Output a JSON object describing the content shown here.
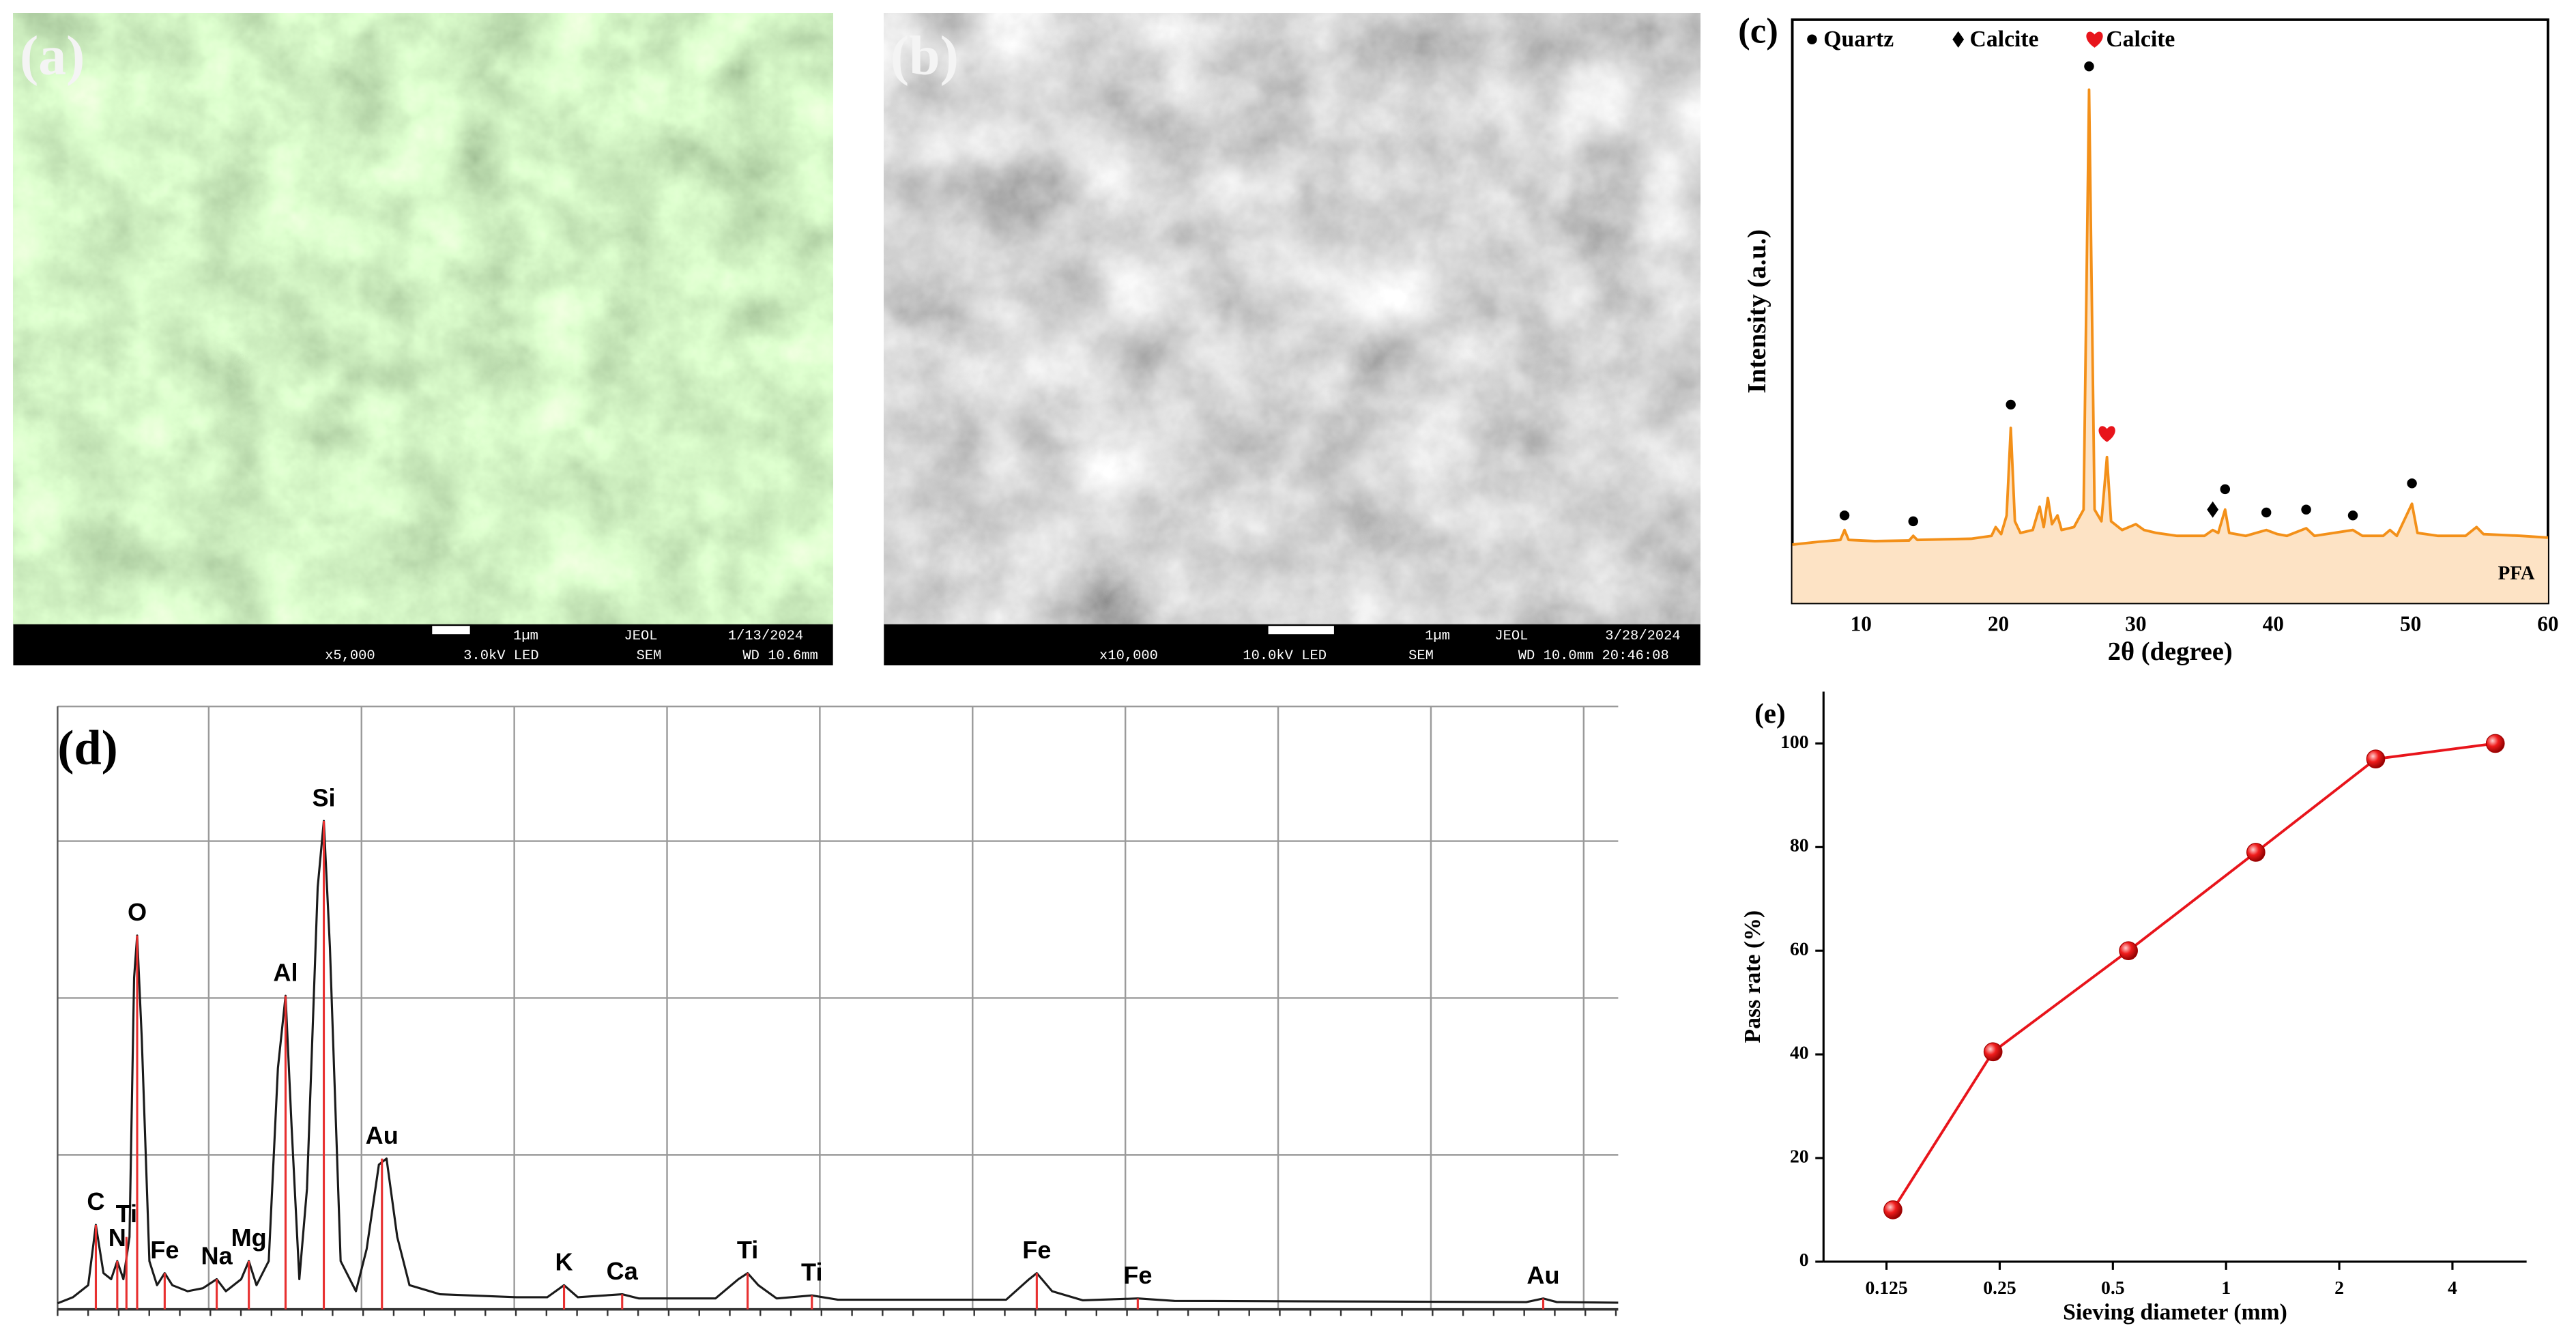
{
  "images": [
    {
      "label": "(a)",
      "info": [
        "1µm",
        "JEOL",
        "1/13/2024",
        "x5,000",
        "3.0kV LED",
        "SEM",
        "WD 10.6mm"
      ]
    },
    {
      "label": "(b)",
      "info": [
        "1µm",
        "JEOL",
        "3/28/2024",
        "x10,000",
        "10.0kV LED",
        "SEM",
        "WD 10.0mm 20:46:08"
      ]
    }
  ],
  "chart_data": [
    {
      "type": "line",
      "label": "(c)",
      "xlabel": "2θ (degree)",
      "ylabel": "Intensity (a.u.)",
      "xlim": [
        5,
        60
      ],
      "xticks": [
        10,
        20,
        30,
        40,
        50,
        60
      ],
      "ylim": [
        0,
        100
      ],
      "series": [
        {
          "name": "PFA",
          "color": "#f39019",
          "fill": "#fde3c5",
          "x": [
            5,
            7,
            8.5,
            8.8,
            9.1,
            11,
            13.5,
            13.8,
            14.1,
            16,
            18,
            19.5,
            19.8,
            20.2,
            20.6,
            20.9,
            21.2,
            21.6,
            22.5,
            23,
            23.3,
            23.6,
            23.9,
            24.3,
            24.6,
            25.5,
            26.2,
            26.6,
            27,
            27.5,
            27.9,
            28.2,
            29,
            29.5,
            30,
            30.6,
            31.5,
            33,
            35,
            35.6,
            36,
            36.5,
            36.8,
            38,
            39.5,
            40.3,
            41,
            42.4,
            43,
            45.8,
            46.5,
            48,
            48.5,
            49,
            50.1,
            50.5,
            52,
            54,
            54.8,
            55.3,
            58,
            60
          ],
          "values": [
            10,
            10.5,
            10.8,
            12.5,
            10.8,
            10.6,
            10.7,
            11.5,
            10.8,
            10.9,
            11,
            11.5,
            13,
            11.8,
            15,
            30,
            14,
            12,
            12.5,
            16.5,
            13,
            18,
            13.5,
            15,
            12.5,
            13,
            16,
            88,
            16,
            14,
            25,
            14,
            12.5,
            13,
            13.5,
            12.5,
            12,
            11.5,
            11.5,
            12.5,
            12,
            16,
            12,
            11.5,
            12.5,
            11.8,
            11.5,
            12.8,
            11.5,
            12.5,
            11.5,
            11.5,
            12.5,
            11.5,
            17,
            12,
            11.5,
            11.5,
            13,
            11.8,
            11.5,
            11.2
          ]
        },
        {
          "name": "Quartz",
          "marker": "circle",
          "color": "#000000",
          "x": [
            8.8,
            13.8,
            20.9,
            26.6,
            36.5,
            39.5,
            42.4,
            45.8,
            50.1
          ],
          "values": [
            15,
            14,
            34,
            92,
            19.5,
            15.5,
            16,
            15,
            20.5
          ]
        },
        {
          "name": "Calcite",
          "marker": "diamond",
          "color": "#000000",
          "x": [
            35.6
          ],
          "values": [
            16
          ]
        },
        {
          "name": "Calcite",
          "marker": "heart",
          "color": "#e8141b",
          "x": [
            27.9
          ],
          "values": [
            29
          ]
        }
      ]
    },
    {
      "type": "line",
      "label": "(d)",
      "xlim": [
        0,
        10.2
      ],
      "ylim": [
        0,
        100
      ],
      "grid": true,
      "series": [
        {
          "color": "#1a1a1a",
          "x": [
            0,
            0.1,
            0.2,
            0.25,
            0.3,
            0.35,
            0.39,
            0.43,
            0.47,
            0.5,
            0.52,
            0.55,
            0.6,
            0.65,
            0.7,
            0.75,
            0.85,
            0.95,
            1.04,
            1.1,
            1.2,
            1.25,
            1.3,
            1.38,
            1.44,
            1.49,
            1.53,
            1.58,
            1.63,
            1.7,
            1.74,
            1.78,
            1.85,
            1.95,
            2.02,
            2.1,
            2.15,
            2.22,
            2.3,
            2.5,
            3,
            3.2,
            3.31,
            3.4,
            3.69,
            3.8,
            4.3,
            4.45,
            4.51,
            4.58,
            4.7,
            4.93,
            5.1,
            6.2,
            6.35,
            6.4,
            6.5,
            6.7,
            7.06,
            7.3,
            9.6,
            9.71,
            9.8,
            10.2
          ],
          "values": [
            1,
            2,
            4,
            14,
            6,
            5,
            8,
            5,
            12,
            55,
            62,
            45,
            8,
            4,
            6,
            4,
            3,
            3.5,
            5,
            3,
            5,
            8,
            4,
            8,
            40,
            52,
            30,
            5,
            20,
            70,
            81,
            60,
            8,
            3,
            10,
            24,
            25,
            12,
            4,
            2.5,
            2,
            2,
            4,
            2,
            2.5,
            1.8,
            1.8,
            5,
            6,
            4,
            1.8,
            2.3,
            1.6,
            1.6,
            5,
            6,
            3,
            1.5,
            1.8,
            1.4,
            1.2,
            1.8,
            1.2,
            1.1
          ]
        }
      ],
      "peaks": [
        {
          "label": "C",
          "x": 0.25,
          "height": 14
        },
        {
          "label": "N",
          "x": 0.39,
          "height": 8
        },
        {
          "label": "Ti",
          "x": 0.45,
          "height": 12
        },
        {
          "label": "O",
          "x": 0.52,
          "height": 62
        },
        {
          "label": "Fe",
          "x": 0.7,
          "height": 6
        },
        {
          "label": "Na",
          "x": 1.04,
          "height": 5
        },
        {
          "label": "Mg",
          "x": 1.25,
          "height": 8
        },
        {
          "label": "Al",
          "x": 1.49,
          "height": 52
        },
        {
          "label": "Si",
          "x": 1.74,
          "height": 81
        },
        {
          "label": "Au",
          "x": 2.12,
          "height": 25
        },
        {
          "label": "K",
          "x": 3.31,
          "height": 4
        },
        {
          "label": "Ca",
          "x": 3.69,
          "height": 2.5
        },
        {
          "label": "Ti",
          "x": 4.51,
          "height": 6
        },
        {
          "label": "Ti",
          "x": 4.93,
          "height": 2.3
        },
        {
          "label": "Fe",
          "x": 6.4,
          "height": 6
        },
        {
          "label": "Fe",
          "x": 7.06,
          "height": 1.8
        },
        {
          "label": "Au",
          "x": 9.71,
          "height": 1.8
        }
      ]
    },
    {
      "type": "line",
      "label": "(e)",
      "xlabel": "Sieving diameter (mm)",
      "ylabel": "Pass rate (%)",
      "xscale": "log",
      "xlim": [
        0.085,
        6.3
      ],
      "xticks": [
        0.125,
        0.25,
        0.5,
        1,
        2,
        4
      ],
      "ylim": [
        0,
        110
      ],
      "yticks": [
        0,
        20,
        40,
        60,
        80,
        100
      ],
      "series": [
        {
          "color": "#e8141b",
          "marker": "sphere",
          "x": [
            0.13,
            0.24,
            0.55,
            1.2,
            2.5,
            5.2
          ],
          "values": [
            10,
            40.5,
            60,
            79,
            97,
            100
          ]
        }
      ]
    }
  ]
}
